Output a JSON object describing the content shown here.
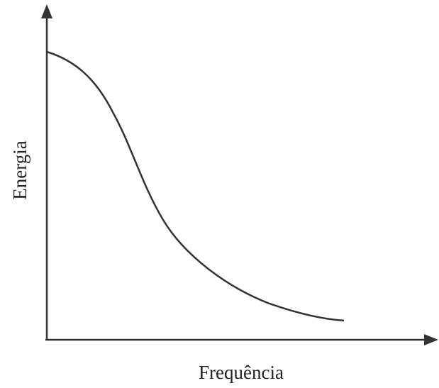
{
  "axes": {
    "x_label": "Frequência",
    "y_label": "Energia"
  }
}
